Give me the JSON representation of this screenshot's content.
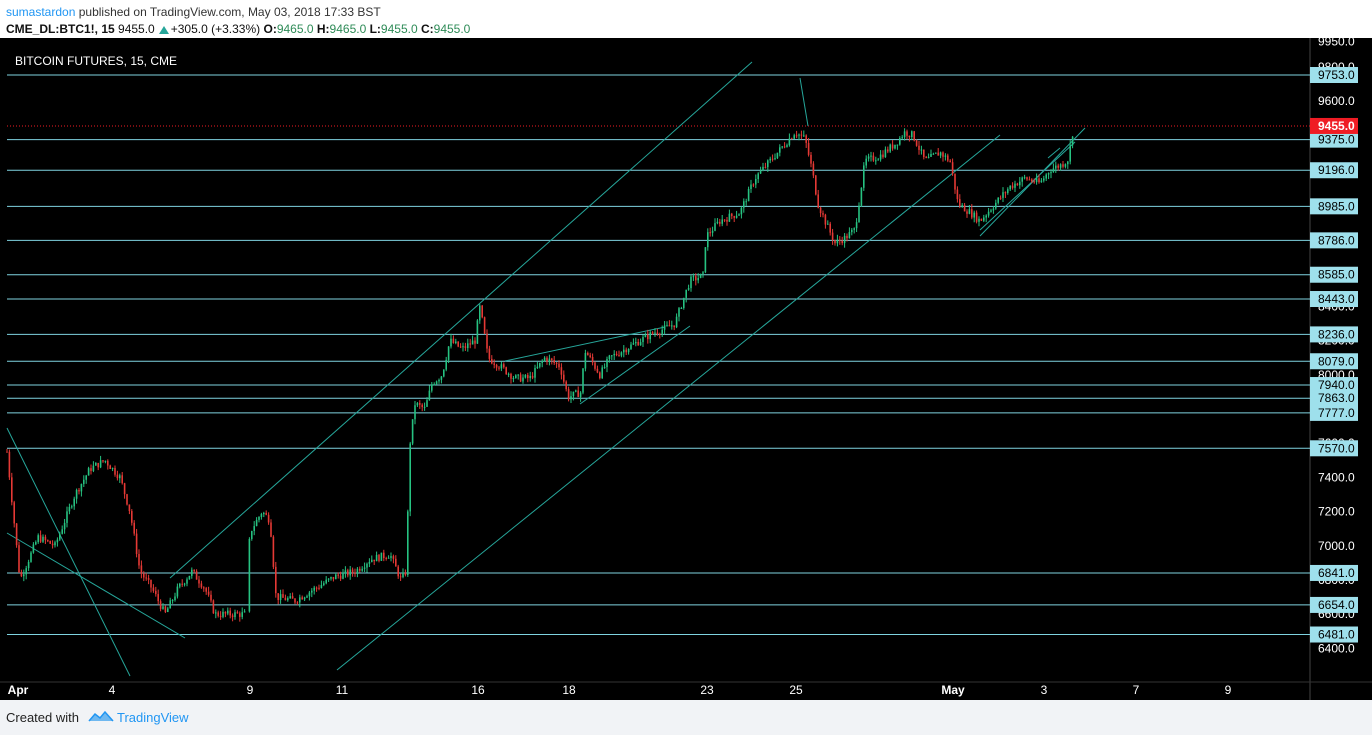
{
  "header": {
    "author": "sumastardon",
    "published": "published on TradingView.com, May 03, 2018 17:33 BST",
    "symbol": "CME_DL:BTC1!, 15",
    "last": "9455.0",
    "change": "+305.0 (+3.33%)",
    "o_label": "O:",
    "o": "9465.0",
    "h_label": "H:",
    "h": "9465.0",
    "l_label": "L:",
    "l": "9455.0",
    "c_label": "C:",
    "c": "9455.0"
  },
  "footer": {
    "created_with": "Created with",
    "brand": "TradingView"
  },
  "colors": {
    "background": "#000000",
    "level_line": "#7fd3e0",
    "channel": "#26a69a",
    "candle_up": "#26c281",
    "candle_down": "#e53935",
    "price_badge": "#ef1c24"
  },
  "chart_data": {
    "type": "line",
    "title": "BITCOIN FUTURES, 15, CME",
    "ylim": [
      6315,
      9920
    ],
    "y_ticks": [
      6400,
      6600,
      6800,
      7000,
      7200,
      7400,
      7600,
      7800,
      8000,
      8200,
      8400,
      8600,
      8800,
      9000,
      9200,
      9400,
      9600,
      9800,
      9950
    ],
    "x_ticks": [
      "Apr",
      "4",
      "9",
      "11",
      "16",
      "18",
      "23",
      "25",
      "May",
      "3",
      "7",
      "9"
    ],
    "current_price": {
      "label": "9455.0",
      "value": 9455
    },
    "levels": [
      {
        "label": "9753.0",
        "value": 9753
      },
      {
        "label": "9375.0",
        "value": 9375
      },
      {
        "label": "9196.0",
        "value": 9196
      },
      {
        "label": "8985.0",
        "value": 8985
      },
      {
        "label": "8786.0",
        "value": 8786
      },
      {
        "label": "8585.0",
        "value": 8585
      },
      {
        "label": "8443.0",
        "value": 8443
      },
      {
        "label": "8236.0",
        "value": 8236
      },
      {
        "label": "8079.0",
        "value": 8079
      },
      {
        "label": "7940.0",
        "value": 7940
      },
      {
        "label": "7863.0",
        "value": 7863
      },
      {
        "label": "7777.0",
        "value": 7777
      },
      {
        "label": "7570.0",
        "value": 7570
      },
      {
        "label": "6841.0",
        "value": 6841
      },
      {
        "label": "6654.0",
        "value": 6654
      },
      {
        "label": "6481.0",
        "value": 6481
      }
    ],
    "price_path": [
      [
        7,
        7550
      ],
      [
        20,
        6800
      ],
      [
        38,
        7050
      ],
      [
        55,
        7000
      ],
      [
        75,
        7300
      ],
      [
        90,
        7450
      ],
      [
        105,
        7500
      ],
      [
        120,
        7400
      ],
      [
        130,
        7200
      ],
      [
        140,
        6850
      ],
      [
        152,
        6750
      ],
      [
        165,
        6600
      ],
      [
        178,
        6750
      ],
      [
        192,
        6850
      ],
      [
        205,
        6750
      ],
      [
        215,
        6600
      ],
      [
        230,
        6600
      ],
      [
        245,
        6600
      ],
      [
        250,
        7080
      ],
      [
        262,
        7200
      ],
      [
        270,
        7150
      ],
      [
        276,
        6700
      ],
      [
        295,
        6680
      ],
      [
        315,
        6750
      ],
      [
        335,
        6820
      ],
      [
        355,
        6850
      ],
      [
        370,
        6920
      ],
      [
        390,
        6950
      ],
      [
        401,
        6800
      ],
      [
        406,
        6850
      ],
      [
        410,
        7600
      ],
      [
        415,
        7830
      ],
      [
        425,
        7800
      ],
      [
        432,
        7950
      ],
      [
        442,
        8000
      ],
      [
        450,
        8200
      ],
      [
        462,
        8150
      ],
      [
        475,
        8200
      ],
      [
        480,
        8400
      ],
      [
        488,
        8100
      ],
      [
        500,
        8050
      ],
      [
        515,
        7980
      ],
      [
        530,
        7980
      ],
      [
        545,
        8100
      ],
      [
        560,
        8050
      ],
      [
        568,
        7870
      ],
      [
        582,
        7900
      ],
      [
        584,
        8150
      ],
      [
        600,
        8000
      ],
      [
        610,
        8100
      ],
      [
        625,
        8150
      ],
      [
        640,
        8200
      ],
      [
        655,
        8250
      ],
      [
        665,
        8270
      ],
      [
        675,
        8300
      ],
      [
        682,
        8420
      ],
      [
        690,
        8550
      ],
      [
        703,
        8580
      ],
      [
        706,
        8810
      ],
      [
        720,
        8900
      ],
      [
        740,
        8950
      ],
      [
        755,
        9150
      ],
      [
        770,
        9250
      ],
      [
        785,
        9350
      ],
      [
        795,
        9420
      ],
      [
        805,
        9380
      ],
      [
        812,
        9200
      ],
      [
        818,
        9000
      ],
      [
        825,
        8900
      ],
      [
        835,
        8770
      ],
      [
        845,
        8800
      ],
      [
        855,
        8850
      ],
      [
        865,
        9250
      ],
      [
        880,
        9280
      ],
      [
        895,
        9350
      ],
      [
        905,
        9420
      ],
      [
        913,
        9400
      ],
      [
        925,
        9250
      ],
      [
        940,
        9300
      ],
      [
        950,
        9250
      ],
      [
        958,
        9000
      ],
      [
        970,
        8950
      ],
      [
        980,
        8900
      ],
      [
        995,
        9000
      ],
      [
        1010,
        9100
      ],
      [
        1025,
        9150
      ],
      [
        1040,
        9120
      ],
      [
        1050,
        9200
      ],
      [
        1062,
        9230
      ],
      [
        1068,
        9260
      ],
      [
        1074,
        9460
      ]
    ]
  }
}
